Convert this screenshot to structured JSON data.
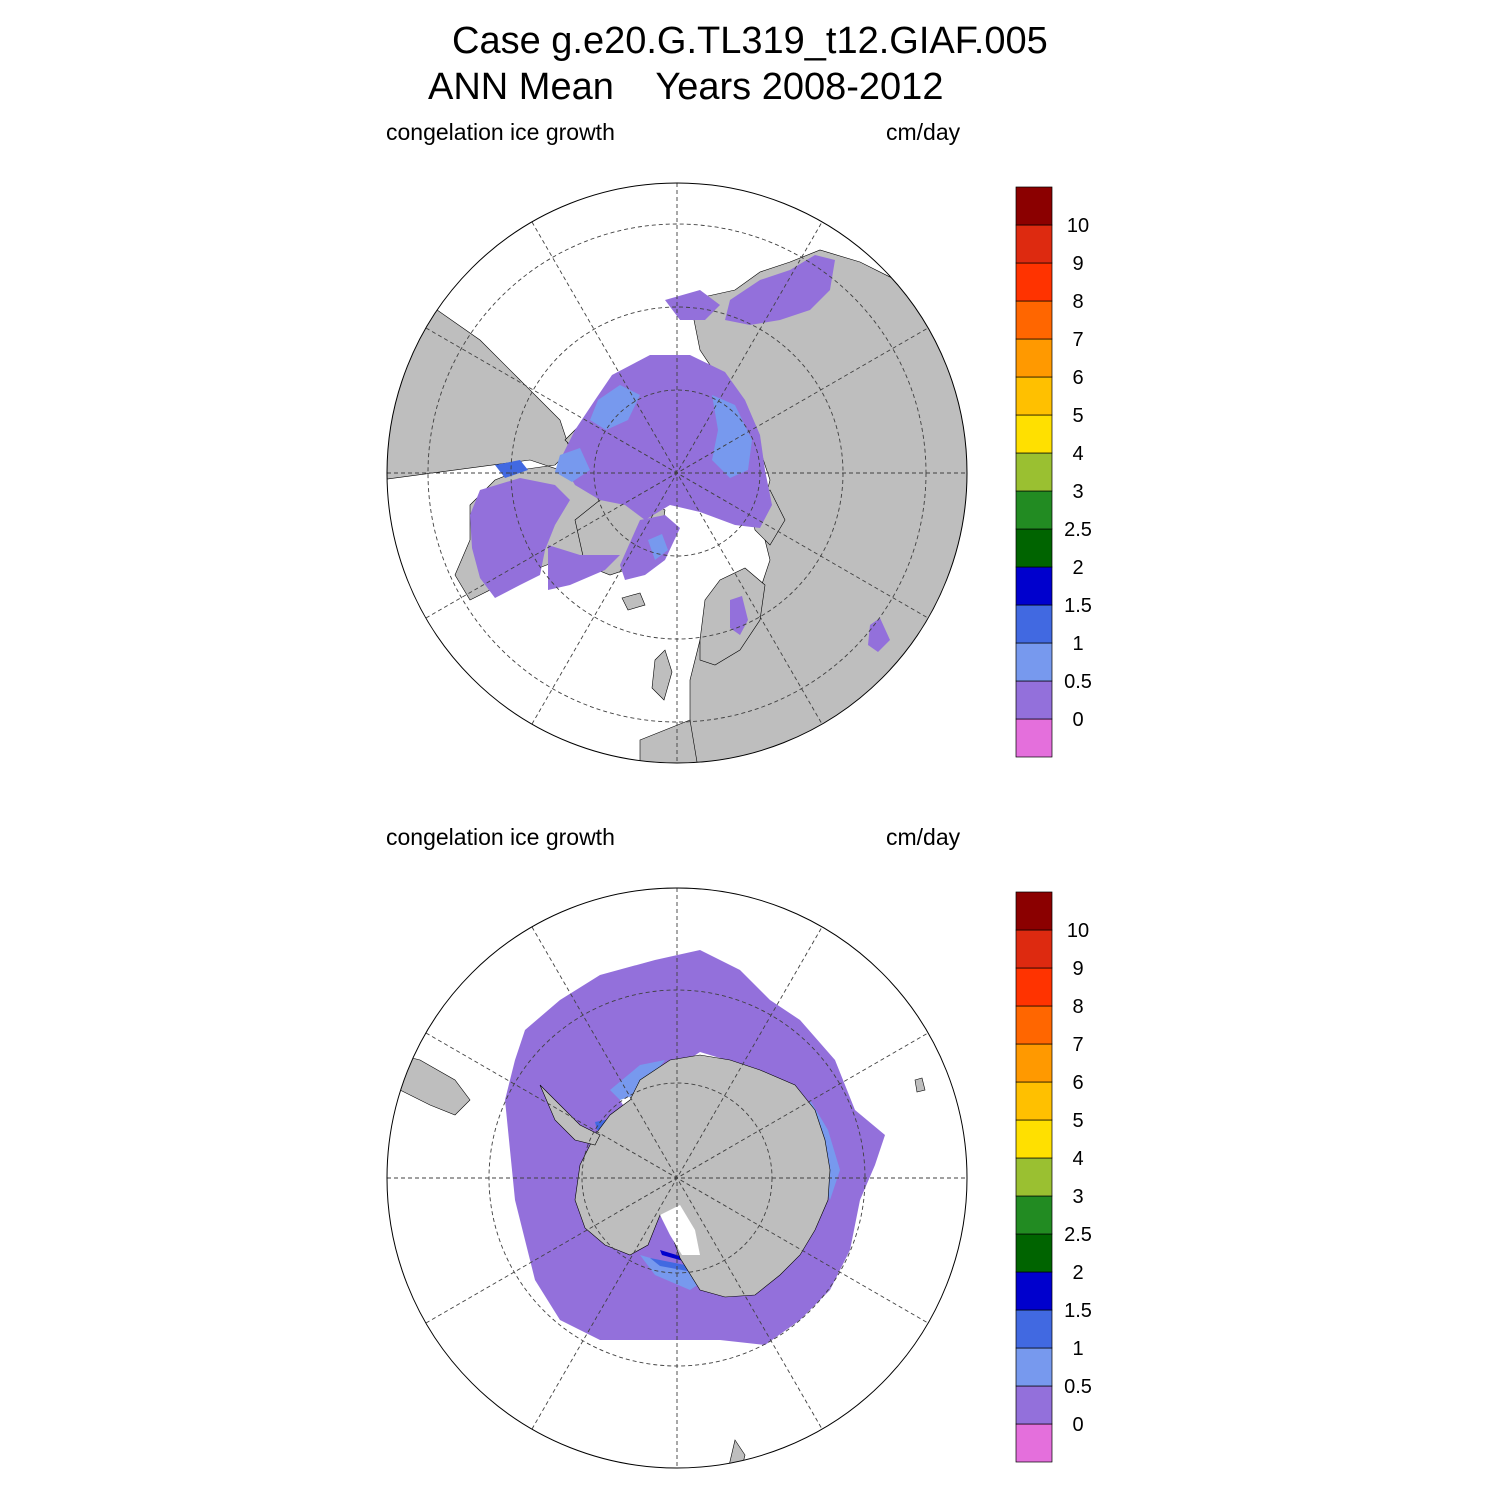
{
  "header": {
    "title_line1": "Case g.e20.G.TL319_t12.GIAF.005",
    "title_line2": "ANN Mean    Years 2008-2012"
  },
  "panels": [
    {
      "hemisphere": "north",
      "variable": "congelation ice growth",
      "units": "cm/day"
    },
    {
      "hemisphere": "south",
      "variable": "congelation ice growth",
      "units": "cm/day"
    }
  ],
  "colorbar": {
    "labels": [
      "0",
      "0.5",
      "1",
      "1.5",
      "2",
      "2.5",
      "3",
      "4",
      "5",
      "6",
      "7",
      "8",
      "9",
      "10"
    ],
    "colors": [
      "#e46fdc",
      "#9370db",
      "#7799ee",
      "#4169e1",
      "#0000cd",
      "#006400",
      "#228b22",
      "#9ac031",
      "#ffe000",
      "#ffc000",
      "#ff9900",
      "#ff6600",
      "#ff3300",
      "#dd2a10",
      "#8b0000"
    ]
  },
  "palette": {
    "land": "#bebebe",
    "ocean": "#ffffff",
    "ice_low": "#9370db",
    "ice_mid": "#7799ee",
    "ice_high": "#4169e1",
    "ice_max": "#0000cd"
  }
}
